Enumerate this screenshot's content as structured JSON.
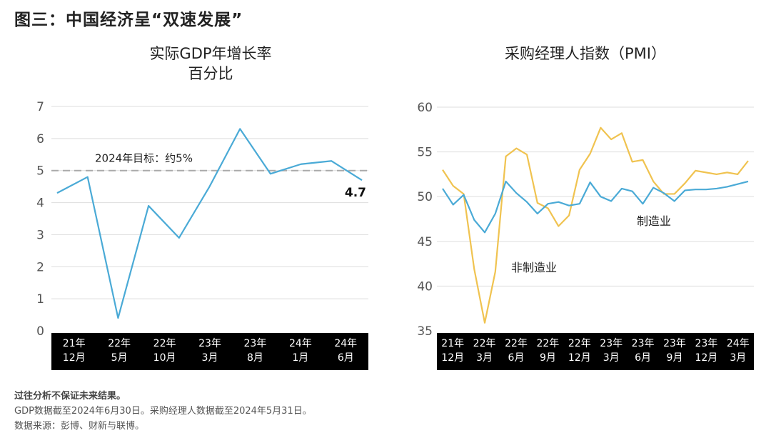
{
  "header": {
    "title": "图三：中国经济呈“双速发展”"
  },
  "colors": {
    "gdp_line": "#4aaad6",
    "manufacturing": "#4aaad6",
    "non_manufacturing": "#f0c350",
    "grid": "#dddddd",
    "target_line": "#aaaaaa",
    "axis_band": "#000000"
  },
  "chart_data": [
    {
      "type": "line",
      "title": "实际GDP年增长率",
      "subtitle": "百分比",
      "ylim": [
        0,
        7
      ],
      "yticks": [
        "0",
        "1",
        "2",
        "3",
        "4",
        "5",
        "6",
        "7"
      ],
      "x_tick_labels": [
        [
          "21年",
          "12月"
        ],
        [
          "22年",
          "5月"
        ],
        [
          "22年",
          "10月"
        ],
        [
          "23年",
          "3月"
        ],
        [
          "23年",
          "8月"
        ],
        [
          "24年",
          "1月"
        ],
        [
          "24年",
          "6月"
        ]
      ],
      "series": [
        {
          "name": "实际GDP年增长率",
          "values": [
            4.3,
            4.8,
            0.4,
            3.9,
            2.9,
            4.5,
            6.3,
            4.9,
            5.2,
            5.3,
            4.7
          ]
        }
      ],
      "reference_line": {
        "value": 5,
        "label": "2024年目标：约5%"
      },
      "end_label": "4.7",
      "grid": true
    },
    {
      "type": "line",
      "title": "采购经理人指数（PMI）",
      "ylim": [
        35,
        60
      ],
      "yticks": [
        "35",
        "40",
        "45",
        "50",
        "55",
        "60"
      ],
      "x_tick_labels": [
        [
          "21年",
          "12月"
        ],
        [
          "22年",
          "3月"
        ],
        [
          "22年",
          "6月"
        ],
        [
          "22年",
          "9月"
        ],
        [
          "22年",
          "12月"
        ],
        [
          "23年",
          "3月"
        ],
        [
          "23年",
          "6月"
        ],
        [
          "23年",
          "9月"
        ],
        [
          "23年",
          "12月"
        ],
        [
          "24年",
          "3月"
        ]
      ],
      "series": [
        {
          "name": "制造业",
          "label": "制造业",
          "values": [
            50.9,
            49.1,
            50.2,
            47.4,
            46.0,
            48.1,
            51.7,
            50.4,
            49.4,
            48.1,
            49.2,
            49.4,
            49.0,
            49.2,
            51.6,
            50.0,
            49.5,
            50.9,
            50.6,
            49.2,
            51.0,
            50.4,
            49.5,
            50.7,
            50.8,
            50.8,
            50.9,
            51.1,
            51.4,
            51.7
          ]
        },
        {
          "name": "非制造业",
          "label": "非制造业",
          "values": [
            53.0,
            51.2,
            50.3,
            41.9,
            35.9,
            41.6,
            54.5,
            55.4,
            54.7,
            49.3,
            48.7,
            46.7,
            47.9,
            53.0,
            54.8,
            57.7,
            56.4,
            57.1,
            53.9,
            54.1,
            51.7,
            50.3,
            50.3,
            51.5,
            52.9,
            52.7,
            52.5,
            52.7,
            52.5,
            54.0
          ]
        }
      ],
      "grid": true
    }
  ],
  "footnotes": {
    "disclaimer": "过往分析不保证未来结果。",
    "data_cutoff": "GDP数据截至2024年6月30日。采购经理人数据截至2024年5月31日。",
    "source": "数据来源：彭博、财新与联博。"
  }
}
